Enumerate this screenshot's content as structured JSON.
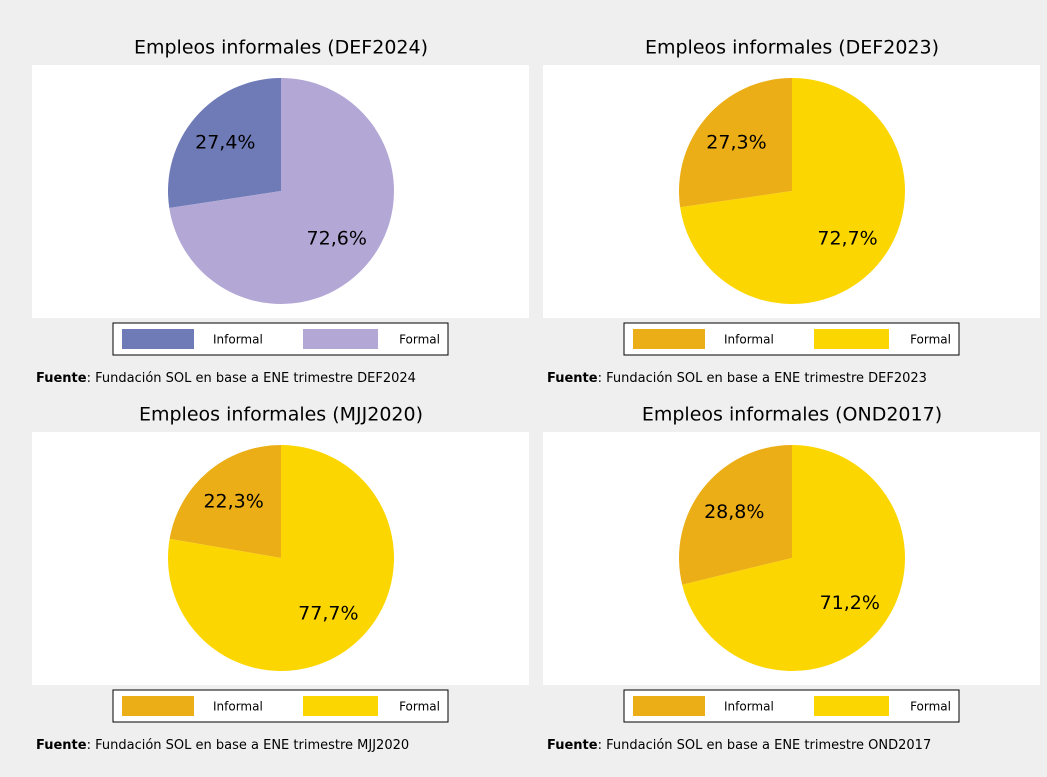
{
  "chart_data": [
    {
      "type": "pie",
      "title": "Empleos informales (DEF2024)",
      "categories": [
        "Informal",
        "Formal"
      ],
      "values": [
        27.4,
        72.6
      ],
      "value_labels": [
        "27,4%",
        "72,6%"
      ],
      "colors": [
        "#6f7bb7",
        "#b3a7d6"
      ],
      "source_label": "Fuente",
      "source": ": Fundación SOL en base a ENE trimestre DEF2024"
    },
    {
      "type": "pie",
      "title": "Empleos informales (DEF2023)",
      "categories": [
        "Informal",
        "Formal"
      ],
      "values": [
        27.3,
        72.7
      ],
      "value_labels": [
        "27,3%",
        "72,7%"
      ],
      "colors": [
        "#ecae16",
        "#fcd600"
      ],
      "source_label": "Fuente",
      "source": ": Fundación SOL en base a ENE trimestre DEF2023"
    },
    {
      "type": "pie",
      "title": "Empleos informales (MJJ2020)",
      "categories": [
        "Informal",
        "Formal"
      ],
      "values": [
        22.3,
        77.7
      ],
      "value_labels": [
        "22,3%",
        "77,7%"
      ],
      "colors": [
        "#ecae16",
        "#fcd600"
      ],
      "source_label": "Fuente",
      "source": ": Fundación SOL en base a ENE trimestre MJJ2020"
    },
    {
      "type": "pie",
      "title": "Empleos informales (OND2017)",
      "categories": [
        "Informal",
        "Formal"
      ],
      "values": [
        28.8,
        71.2
      ],
      "value_labels": [
        "28,8%",
        "71,2%"
      ],
      "colors": [
        "#ecae16",
        "#fcd600"
      ],
      "source_label": "Fuente",
      "source": ": Fundación SOL en base a ENE trimestre OND2017"
    }
  ]
}
